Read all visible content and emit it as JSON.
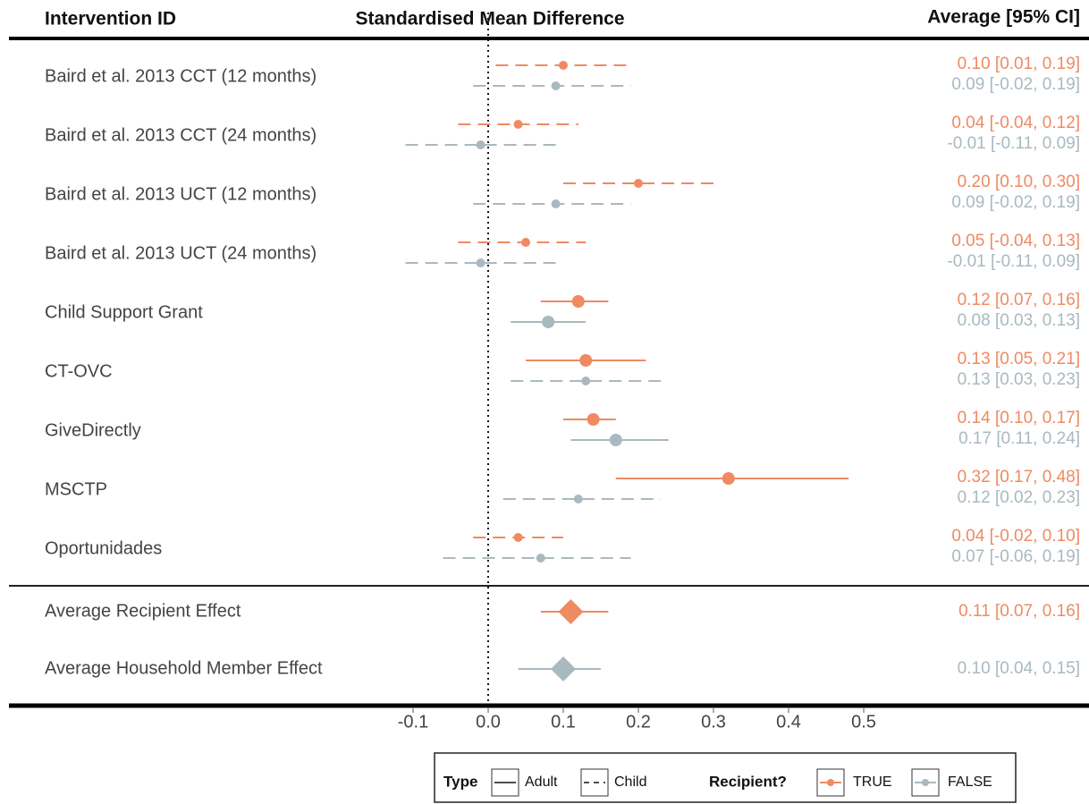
{
  "chart_data": {
    "type": "forest",
    "columns": [
      "Intervention ID",
      "Standardised Mean Difference",
      "Average [95% CI]"
    ],
    "categories": [
      "Baird et al. 2013 CCT (12 months)",
      "Baird et al. 2013 CCT (24 months)",
      "Baird et al. 2013 UCT (12 months)",
      "Baird et al. 2013 UCT (24 months)",
      "Child Support Grant",
      "CT-OVC",
      "GiveDirectly",
      "MSCTP",
      "Oportunidades",
      "Average Recipient Effect",
      "Average Household Member Effect"
    ],
    "marker": [
      "circle",
      "circle",
      "circle",
      "circle",
      "circle",
      "circle",
      "circle",
      "circle",
      "circle",
      "diamond",
      "diamond"
    ],
    "xlim": [
      -0.15,
      0.54
    ],
    "xticks": [
      -0.1,
      {
        "value": 0,
        "label": "0.0"
      },
      0.1,
      0.2,
      0.3,
      0.4,
      0.5
    ],
    "reference_line": 0,
    "linetypes": [
      "Adult",
      "Child"
    ],
    "legend_titles": [
      "Type",
      "Recipient?"
    ],
    "series": [
      {
        "name": "TRUE",
        "color": "#ef8a62",
        "values": [
          0.1,
          0.04,
          0.2,
          0.05,
          0.12,
          0.13,
          0.14,
          0.32,
          0.04,
          0.11,
          null
        ],
        "lower": [
          0.01,
          -0.04,
          0.1,
          -0.04,
          0.07,
          0.05,
          0.1,
          0.17,
          -0.02,
          0.07,
          null
        ],
        "upper": [
          0.19,
          0.12,
          0.3,
          0.13,
          0.16,
          0.21,
          0.17,
          0.48,
          0.1,
          0.16,
          null
        ],
        "linetype": [
          "Child",
          "Child",
          "Child",
          "Child",
          "Adult",
          "Adult",
          "Adult",
          "Adult",
          "Child",
          "Adult",
          null
        ],
        "value_labels": [
          "0.10 [0.01, 0.19]",
          "0.04 [-0.04, 0.12]",
          "0.20 [0.10, 0.30]",
          "0.05 [-0.04, 0.13]",
          "0.12 [0.07, 0.16]",
          "0.13 [0.05, 0.21]",
          "0.14 [0.10, 0.17]",
          "0.32 [0.17, 0.48]",
          "0.04 [-0.02, 0.10]",
          "0.11 [0.07, 0.16]",
          null
        ]
      },
      {
        "name": "FALSE",
        "color": "#a9b9c0",
        "values": [
          0.09,
          -0.01,
          0.09,
          -0.01,
          0.08,
          0.13,
          0.17,
          0.12,
          0.07,
          null,
          0.1
        ],
        "lower": [
          -0.02,
          -0.11,
          -0.02,
          -0.11,
          0.03,
          0.03,
          0.11,
          0.02,
          -0.06,
          null,
          0.04
        ],
        "upper": [
          0.19,
          0.09,
          0.19,
          0.09,
          0.13,
          0.23,
          0.24,
          0.23,
          0.19,
          null,
          0.15
        ],
        "linetype": [
          "Child",
          "Child",
          "Child",
          "Child",
          "Adult",
          "Child",
          "Adult",
          "Child",
          "Child",
          null,
          "Adult"
        ],
        "value_labels": [
          "0.09 [-0.02, 0.19]",
          "-0.01 [-0.11, 0.09]",
          "0.09 [-0.02, 0.19]",
          "-0.01 [-0.11, 0.09]",
          "0.08 [0.03, 0.13]",
          "0.13 [0.03, 0.23]",
          "0.17 [0.11, 0.24]",
          "0.12 [0.02, 0.23]",
          "0.07 [-0.06, 0.19]",
          null,
          "0.10 [0.04, 0.15]"
        ]
      }
    ]
  }
}
